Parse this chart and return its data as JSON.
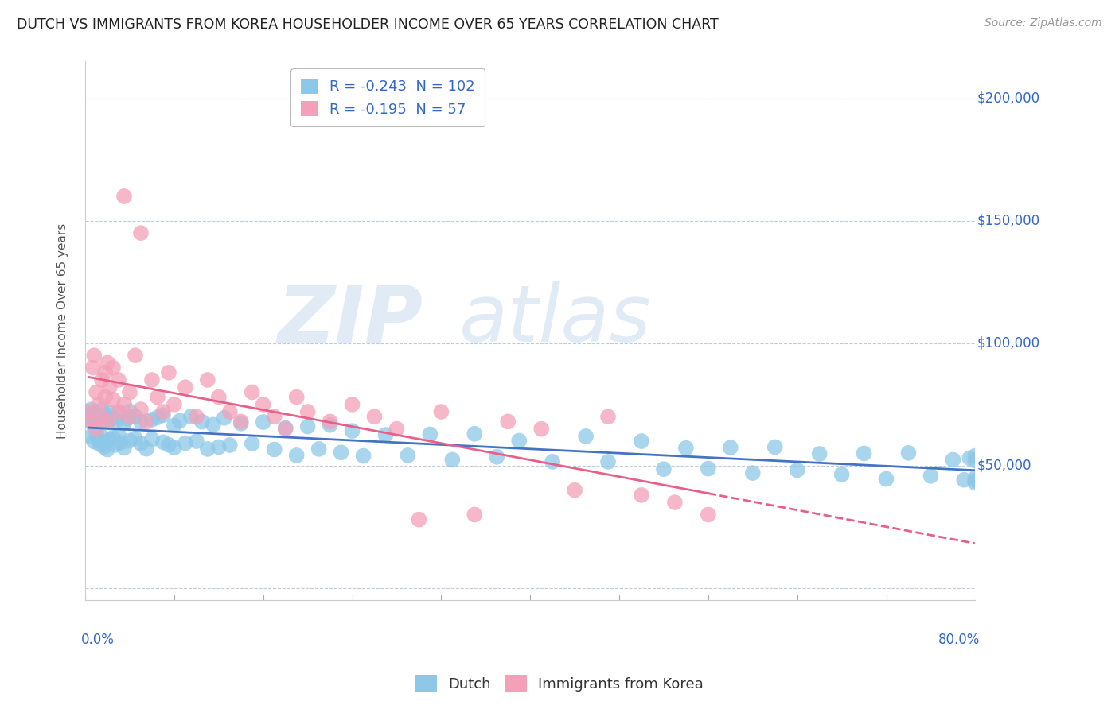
{
  "title": "DUTCH VS IMMIGRANTS FROM KOREA HOUSEHOLDER INCOME OVER 65 YEARS CORRELATION CHART",
  "source": "Source: ZipAtlas.com",
  "ylabel": "Householder Income Over 65 years",
  "watermark_zip": "ZIP",
  "watermark_atlas": "atlas",
  "legend_dutch_R": "-0.243",
  "legend_dutch_N": "102",
  "legend_korea_R": "-0.195",
  "legend_korea_N": "57",
  "color_dutch": "#8DC8E8",
  "color_korea": "#F4A0B8",
  "color_trendline_dutch": "#4472C4",
  "color_trendline_korea": "#E8608A",
  "color_text_blue": "#3366CC",
  "color_axis_label": "#555555",
  "background_color": "#FFFFFF",
  "grid_color": "#BBCCDD",
  "watermark_color_zip": "#C5D8EE",
  "watermark_color_atlas": "#A8C8E8"
}
